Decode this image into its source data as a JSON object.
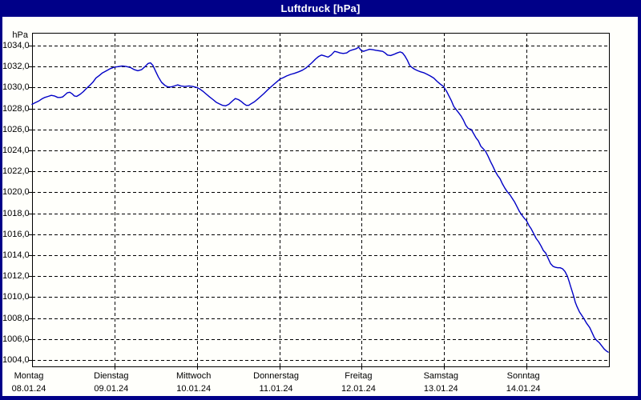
{
  "window": {
    "title": "Luftdruck [hPa]"
  },
  "colors": {
    "titlebar_bg": "#000088",
    "border": "#000088",
    "titlebar_text": "#ffffff",
    "background": "#fffffb",
    "grid": "#000000",
    "frame": "#000000",
    "line": "#0000c6",
    "label_text": "#000000"
  },
  "chart_data": {
    "type": "line",
    "title": "Luftdruck [hPa]",
    "y_unit_label": "hPa",
    "y_axis": {
      "min": 1004,
      "max": 1034,
      "step": 2,
      "tick_labels": [
        "1034,0",
        "1032,0",
        "1030,0",
        "1028,0",
        "1026,0",
        "1024,0",
        "1022,0",
        "1020,0",
        "1018,0",
        "1016,0",
        "1014,0",
        "1012,0",
        "1010,0",
        "1008,0",
        "1006,0",
        "1004,0"
      ]
    },
    "x_axis": {
      "unit": "hours since Monday 00:00",
      "range_hours": [
        0,
        168
      ],
      "days": [
        {
          "name": "Montag",
          "date": "08.01.24"
        },
        {
          "name": "Dienstag",
          "date": "09.01.24"
        },
        {
          "name": "Mittwoch",
          "date": "10.01.24"
        },
        {
          "name": "Donnerstag",
          "date": "11.01.24"
        },
        {
          "name": "Freitag",
          "date": "12.01.24"
        },
        {
          "name": "Samstag",
          "date": "13.01.24"
        },
        {
          "name": "Sonntag",
          "date": "14.01.24"
        }
      ]
    },
    "grid": "dashed",
    "legend": "none",
    "series": [
      {
        "name": "Luftdruck",
        "unit": "hPa",
        "points": [
          [
            0,
            1028.4
          ],
          [
            0.9,
            1028.55
          ],
          [
            1.9,
            1028.7
          ],
          [
            2.8,
            1028.9
          ],
          [
            3.7,
            1029.05
          ],
          [
            4.7,
            1029.15
          ],
          [
            5.6,
            1029.25
          ],
          [
            6.5,
            1029.2
          ],
          [
            7.5,
            1029.05
          ],
          [
            8.2,
            1029.05
          ],
          [
            8.9,
            1029.1
          ],
          [
            9.6,
            1029.3
          ],
          [
            10.3,
            1029.5
          ],
          [
            11,
            1029.55
          ],
          [
            11.7,
            1029.4
          ],
          [
            12.3,
            1029.2
          ],
          [
            13,
            1029.15
          ],
          [
            14,
            1029.35
          ],
          [
            14.9,
            1029.6
          ],
          [
            15.8,
            1029.9
          ],
          [
            16.8,
            1030.2
          ],
          [
            17.7,
            1030.5
          ],
          [
            18.6,
            1030.9
          ],
          [
            19.6,
            1031.15
          ],
          [
            20.5,
            1031.4
          ],
          [
            21.7,
            1031.6
          ],
          [
            22.8,
            1031.8
          ],
          [
            24,
            1031.95
          ],
          [
            25.2,
            1032
          ],
          [
            26.3,
            1032.05
          ],
          [
            27.5,
            1032
          ],
          [
            28.7,
            1031.9
          ],
          [
            29.8,
            1031.7
          ],
          [
            30.8,
            1031.6
          ],
          [
            31.9,
            1031.7
          ],
          [
            32.9,
            1032
          ],
          [
            33.8,
            1032.3
          ],
          [
            34.5,
            1032.35
          ],
          [
            35.2,
            1032.1
          ],
          [
            35.9,
            1031.6
          ],
          [
            36.8,
            1031
          ],
          [
            37.7,
            1030.5
          ],
          [
            38.7,
            1030.2
          ],
          [
            39.6,
            1030.05
          ],
          [
            40.5,
            1030.05
          ],
          [
            41.5,
            1030.15
          ],
          [
            42.4,
            1030.25
          ],
          [
            43.3,
            1030.15
          ],
          [
            44.5,
            1030.1
          ],
          [
            45.7,
            1030.15
          ],
          [
            46.8,
            1030.1
          ],
          [
            48,
            1030
          ],
          [
            48.9,
            1029.85
          ],
          [
            49.9,
            1029.6
          ],
          [
            50.8,
            1029.35
          ],
          [
            51.7,
            1029.1
          ],
          [
            52.7,
            1028.85
          ],
          [
            53.6,
            1028.6
          ],
          [
            54.5,
            1028.45
          ],
          [
            55.5,
            1028.3
          ],
          [
            56.4,
            1028.25
          ],
          [
            57.3,
            1028.4
          ],
          [
            58.3,
            1028.7
          ],
          [
            59.2,
            1028.95
          ],
          [
            60.1,
            1028.85
          ],
          [
            61,
            1028.65
          ],
          [
            61.7,
            1028.45
          ],
          [
            62.4,
            1028.3
          ],
          [
            63.1,
            1028.3
          ],
          [
            63.8,
            1028.45
          ],
          [
            64.8,
            1028.65
          ],
          [
            65.7,
            1028.9
          ],
          [
            66.6,
            1029.15
          ],
          [
            67.6,
            1029.45
          ],
          [
            68.5,
            1029.75
          ],
          [
            69.4,
            1030
          ],
          [
            70.4,
            1030.3
          ],
          [
            71.3,
            1030.55
          ],
          [
            72.2,
            1030.8
          ],
          [
            73.2,
            1030.95
          ],
          [
            74.1,
            1031.1
          ],
          [
            75.3,
            1031.25
          ],
          [
            76.4,
            1031.35
          ],
          [
            77.6,
            1031.5
          ],
          [
            78.7,
            1031.65
          ],
          [
            79.7,
            1031.85
          ],
          [
            80.6,
            1032.1
          ],
          [
            81.6,
            1032.4
          ],
          [
            82.5,
            1032.7
          ],
          [
            83.4,
            1032.95
          ],
          [
            84.3,
            1033.1
          ],
          [
            85.3,
            1033
          ],
          [
            86.2,
            1032.9
          ],
          [
            87.1,
            1033.1
          ],
          [
            88.1,
            1033.45
          ],
          [
            88.8,
            1033.4
          ],
          [
            89.7,
            1033.3
          ],
          [
            90.6,
            1033.25
          ],
          [
            91.6,
            1033.3
          ],
          [
            92.5,
            1033.5
          ],
          [
            93.4,
            1033.6
          ],
          [
            94.4,
            1033.7
          ],
          [
            95.1,
            1033.85
          ],
          [
            95.8,
            1033.55
          ],
          [
            96.5,
            1033.45
          ],
          [
            97.4,
            1033.55
          ],
          [
            98.3,
            1033.65
          ],
          [
            99.3,
            1033.6
          ],
          [
            100.2,
            1033.55
          ],
          [
            101.1,
            1033.5
          ],
          [
            102.1,
            1033.45
          ],
          [
            102.8,
            1033.3
          ],
          [
            103.5,
            1033.1
          ],
          [
            104.4,
            1033.05
          ],
          [
            105.3,
            1033.15
          ],
          [
            106.3,
            1033.3
          ],
          [
            107.2,
            1033.4
          ],
          [
            107.9,
            1033.3
          ],
          [
            108.6,
            1033
          ],
          [
            109.3,
            1032.6
          ],
          [
            110,
            1032.1
          ],
          [
            110.7,
            1031.9
          ],
          [
            111.4,
            1031.75
          ],
          [
            112.3,
            1031.6
          ],
          [
            113.2,
            1031.5
          ],
          [
            114.2,
            1031.4
          ],
          [
            115.1,
            1031.25
          ],
          [
            116,
            1031.1
          ],
          [
            117,
            1030.9
          ],
          [
            117.9,
            1030.6
          ],
          [
            118.8,
            1030.35
          ],
          [
            119.8,
            1030.1
          ],
          [
            120.7,
            1029.65
          ],
          [
            121.4,
            1029.2
          ],
          [
            122.1,
            1028.75
          ],
          [
            122.8,
            1028.2
          ],
          [
            123.5,
            1027.9
          ],
          [
            124.2,
            1027.6
          ],
          [
            124.9,
            1027.3
          ],
          [
            125.6,
            1026.9
          ],
          [
            126.3,
            1026.4
          ],
          [
            127,
            1026.1
          ],
          [
            127.9,
            1026
          ],
          [
            128.6,
            1025.6
          ],
          [
            129.3,
            1025.2
          ],
          [
            130,
            1024.9
          ],
          [
            130.7,
            1024.4
          ],
          [
            131.4,
            1024.15
          ],
          [
            132.1,
            1023.9
          ],
          [
            132.8,
            1023.45
          ],
          [
            133.5,
            1022.95
          ],
          [
            134.2,
            1022.5
          ],
          [
            134.9,
            1022
          ],
          [
            135.6,
            1021.6
          ],
          [
            136.3,
            1021.3
          ],
          [
            137,
            1020.8
          ],
          [
            137.7,
            1020.4
          ],
          [
            138.4,
            1020.05
          ],
          [
            139.1,
            1019.8
          ],
          [
            139.8,
            1019.45
          ],
          [
            140.5,
            1019.1
          ],
          [
            141.2,
            1018.65
          ],
          [
            141.9,
            1018.2
          ],
          [
            142.6,
            1017.85
          ],
          [
            143.3,
            1017.55
          ],
          [
            144,
            1017.3
          ],
          [
            144.7,
            1016.85
          ],
          [
            145.4,
            1016.5
          ],
          [
            146.1,
            1016.05
          ],
          [
            146.8,
            1015.6
          ],
          [
            147.5,
            1015.3
          ],
          [
            148.2,
            1014.9
          ],
          [
            148.9,
            1014.45
          ],
          [
            149.6,
            1014.2
          ],
          [
            150.3,
            1013.7
          ],
          [
            151,
            1013.2
          ],
          [
            151.7,
            1012.95
          ],
          [
            152.4,
            1012.85
          ],
          [
            153.1,
            1012.8
          ],
          [
            153.8,
            1012.8
          ],
          [
            154.5,
            1012.7
          ],
          [
            155.2,
            1012.45
          ],
          [
            155.9,
            1012
          ],
          [
            156.4,
            1011.5
          ],
          [
            156.8,
            1011.05
          ],
          [
            157.3,
            1010.55
          ],
          [
            157.8,
            1010
          ],
          [
            158.2,
            1009.5
          ],
          [
            158.7,
            1009.1
          ],
          [
            159.4,
            1008.6
          ],
          [
            160.1,
            1008.25
          ],
          [
            160.8,
            1007.9
          ],
          [
            161.5,
            1007.5
          ],
          [
            162.4,
            1007.1
          ],
          [
            163.1,
            1006.6
          ],
          [
            163.8,
            1006.1
          ],
          [
            164.5,
            1005.85
          ],
          [
            165.2,
            1005.65
          ],
          [
            165.9,
            1005.35
          ],
          [
            166.6,
            1005.05
          ],
          [
            167.3,
            1004.85
          ],
          [
            167.8,
            1004.75
          ]
        ]
      }
    ]
  }
}
